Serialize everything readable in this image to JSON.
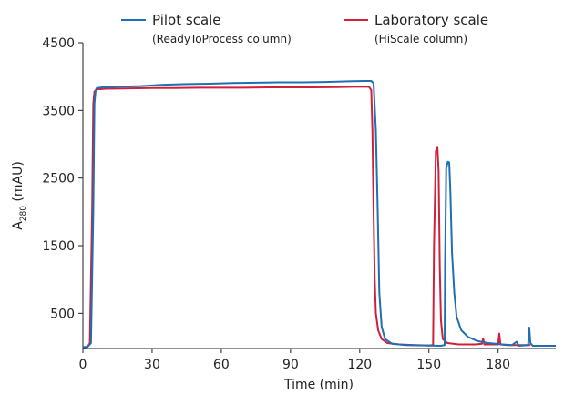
{
  "chart_data": {
    "type": "line",
    "xlabel": "Time (min)",
    "ylabel": {
      "prefix": "A",
      "subscript": "280",
      "suffix": " (mAU)"
    },
    "xlim": [
      0,
      205
    ],
    "ylim": [
      -20,
      4500
    ],
    "x_ticks": [
      0,
      30,
      60,
      90,
      120,
      150,
      180
    ],
    "y_ticks": [
      500,
      1500,
      2500,
      3500,
      4500
    ],
    "legend_position": "top",
    "series": [
      {
        "name": "Pilot scale",
        "sublabel": "(ReadyToProcess column)",
        "color": "#1f6fb2",
        "points": [
          [
            0,
            0
          ],
          [
            2,
            5
          ],
          [
            3.5,
            60
          ],
          [
            4.5,
            2000
          ],
          [
            5,
            3600
          ],
          [
            5.5,
            3790
          ],
          [
            6,
            3830
          ],
          [
            8,
            3840
          ],
          [
            15,
            3850
          ],
          [
            25,
            3860
          ],
          [
            35,
            3880
          ],
          [
            45,
            3890
          ],
          [
            55,
            3895
          ],
          [
            65,
            3905
          ],
          [
            75,
            3910
          ],
          [
            85,
            3915
          ],
          [
            95,
            3915
          ],
          [
            105,
            3920
          ],
          [
            115,
            3930
          ],
          [
            122,
            3935
          ],
          [
            125,
            3935
          ],
          [
            126,
            3900
          ],
          [
            127,
            3200
          ],
          [
            127.8,
            2000
          ],
          [
            128.5,
            800
          ],
          [
            129.5,
            300
          ],
          [
            131,
            120
          ],
          [
            134,
            50
          ],
          [
            140,
            30
          ],
          [
            148,
            25
          ],
          [
            155,
            20
          ],
          [
            156.8,
            30
          ],
          [
            157,
            1200
          ],
          [
            157.5,
            2650
          ],
          [
            158.2,
            2740
          ],
          [
            158.8,
            2730
          ],
          [
            159.3,
            2300
          ],
          [
            160,
            1400
          ],
          [
            161,
            800
          ],
          [
            162,
            450
          ],
          [
            164,
            250
          ],
          [
            167,
            150
          ],
          [
            171,
            90
          ],
          [
            176,
            60
          ],
          [
            182,
            40
          ],
          [
            186,
            30
          ],
          [
            188,
            80
          ],
          [
            189,
            20
          ],
          [
            193,
            30
          ],
          [
            193.5,
            290
          ],
          [
            194,
            60
          ],
          [
            195,
            20
          ],
          [
            200,
            20
          ],
          [
            205,
            20
          ]
        ]
      },
      {
        "name": "Laboratory scale",
        "sublabel": "(HiScale column)",
        "color": "#d0213a",
        "points": [
          [
            0,
            0
          ],
          [
            2,
            5
          ],
          [
            3,
            60
          ],
          [
            4,
            2000
          ],
          [
            4.5,
            3600
          ],
          [
            5,
            3780
          ],
          [
            6,
            3810
          ],
          [
            10,
            3820
          ],
          [
            20,
            3825
          ],
          [
            30,
            3830
          ],
          [
            40,
            3830
          ],
          [
            50,
            3835
          ],
          [
            60,
            3835
          ],
          [
            70,
            3835
          ],
          [
            80,
            3840
          ],
          [
            90,
            3840
          ],
          [
            100,
            3840
          ],
          [
            110,
            3845
          ],
          [
            118,
            3850
          ],
          [
            124,
            3850
          ],
          [
            125,
            3800
          ],
          [
            125.5,
            3200
          ],
          [
            126,
            2000
          ],
          [
            126.5,
            1000
          ],
          [
            127,
            500
          ],
          [
            128,
            250
          ],
          [
            129.5,
            120
          ],
          [
            132,
            60
          ],
          [
            137,
            40
          ],
          [
            144,
            30
          ],
          [
            150,
            25
          ],
          [
            151.8,
            30
          ],
          [
            152.2,
            1500
          ],
          [
            153,
            2900
          ],
          [
            153.7,
            2950
          ],
          [
            154.2,
            2600
          ],
          [
            154.7,
            1200
          ],
          [
            155.2,
            400
          ],
          [
            156,
            120
          ],
          [
            158,
            60
          ],
          [
            163,
            40
          ],
          [
            170,
            40
          ],
          [
            173,
            50
          ],
          [
            173.5,
            130
          ],
          [
            174,
            40
          ],
          [
            180,
            40
          ],
          [
            180.5,
            200
          ],
          [
            181,
            40
          ],
          [
            184,
            30
          ],
          [
            190,
            30
          ],
          [
            194,
            30
          ]
        ]
      }
    ]
  }
}
